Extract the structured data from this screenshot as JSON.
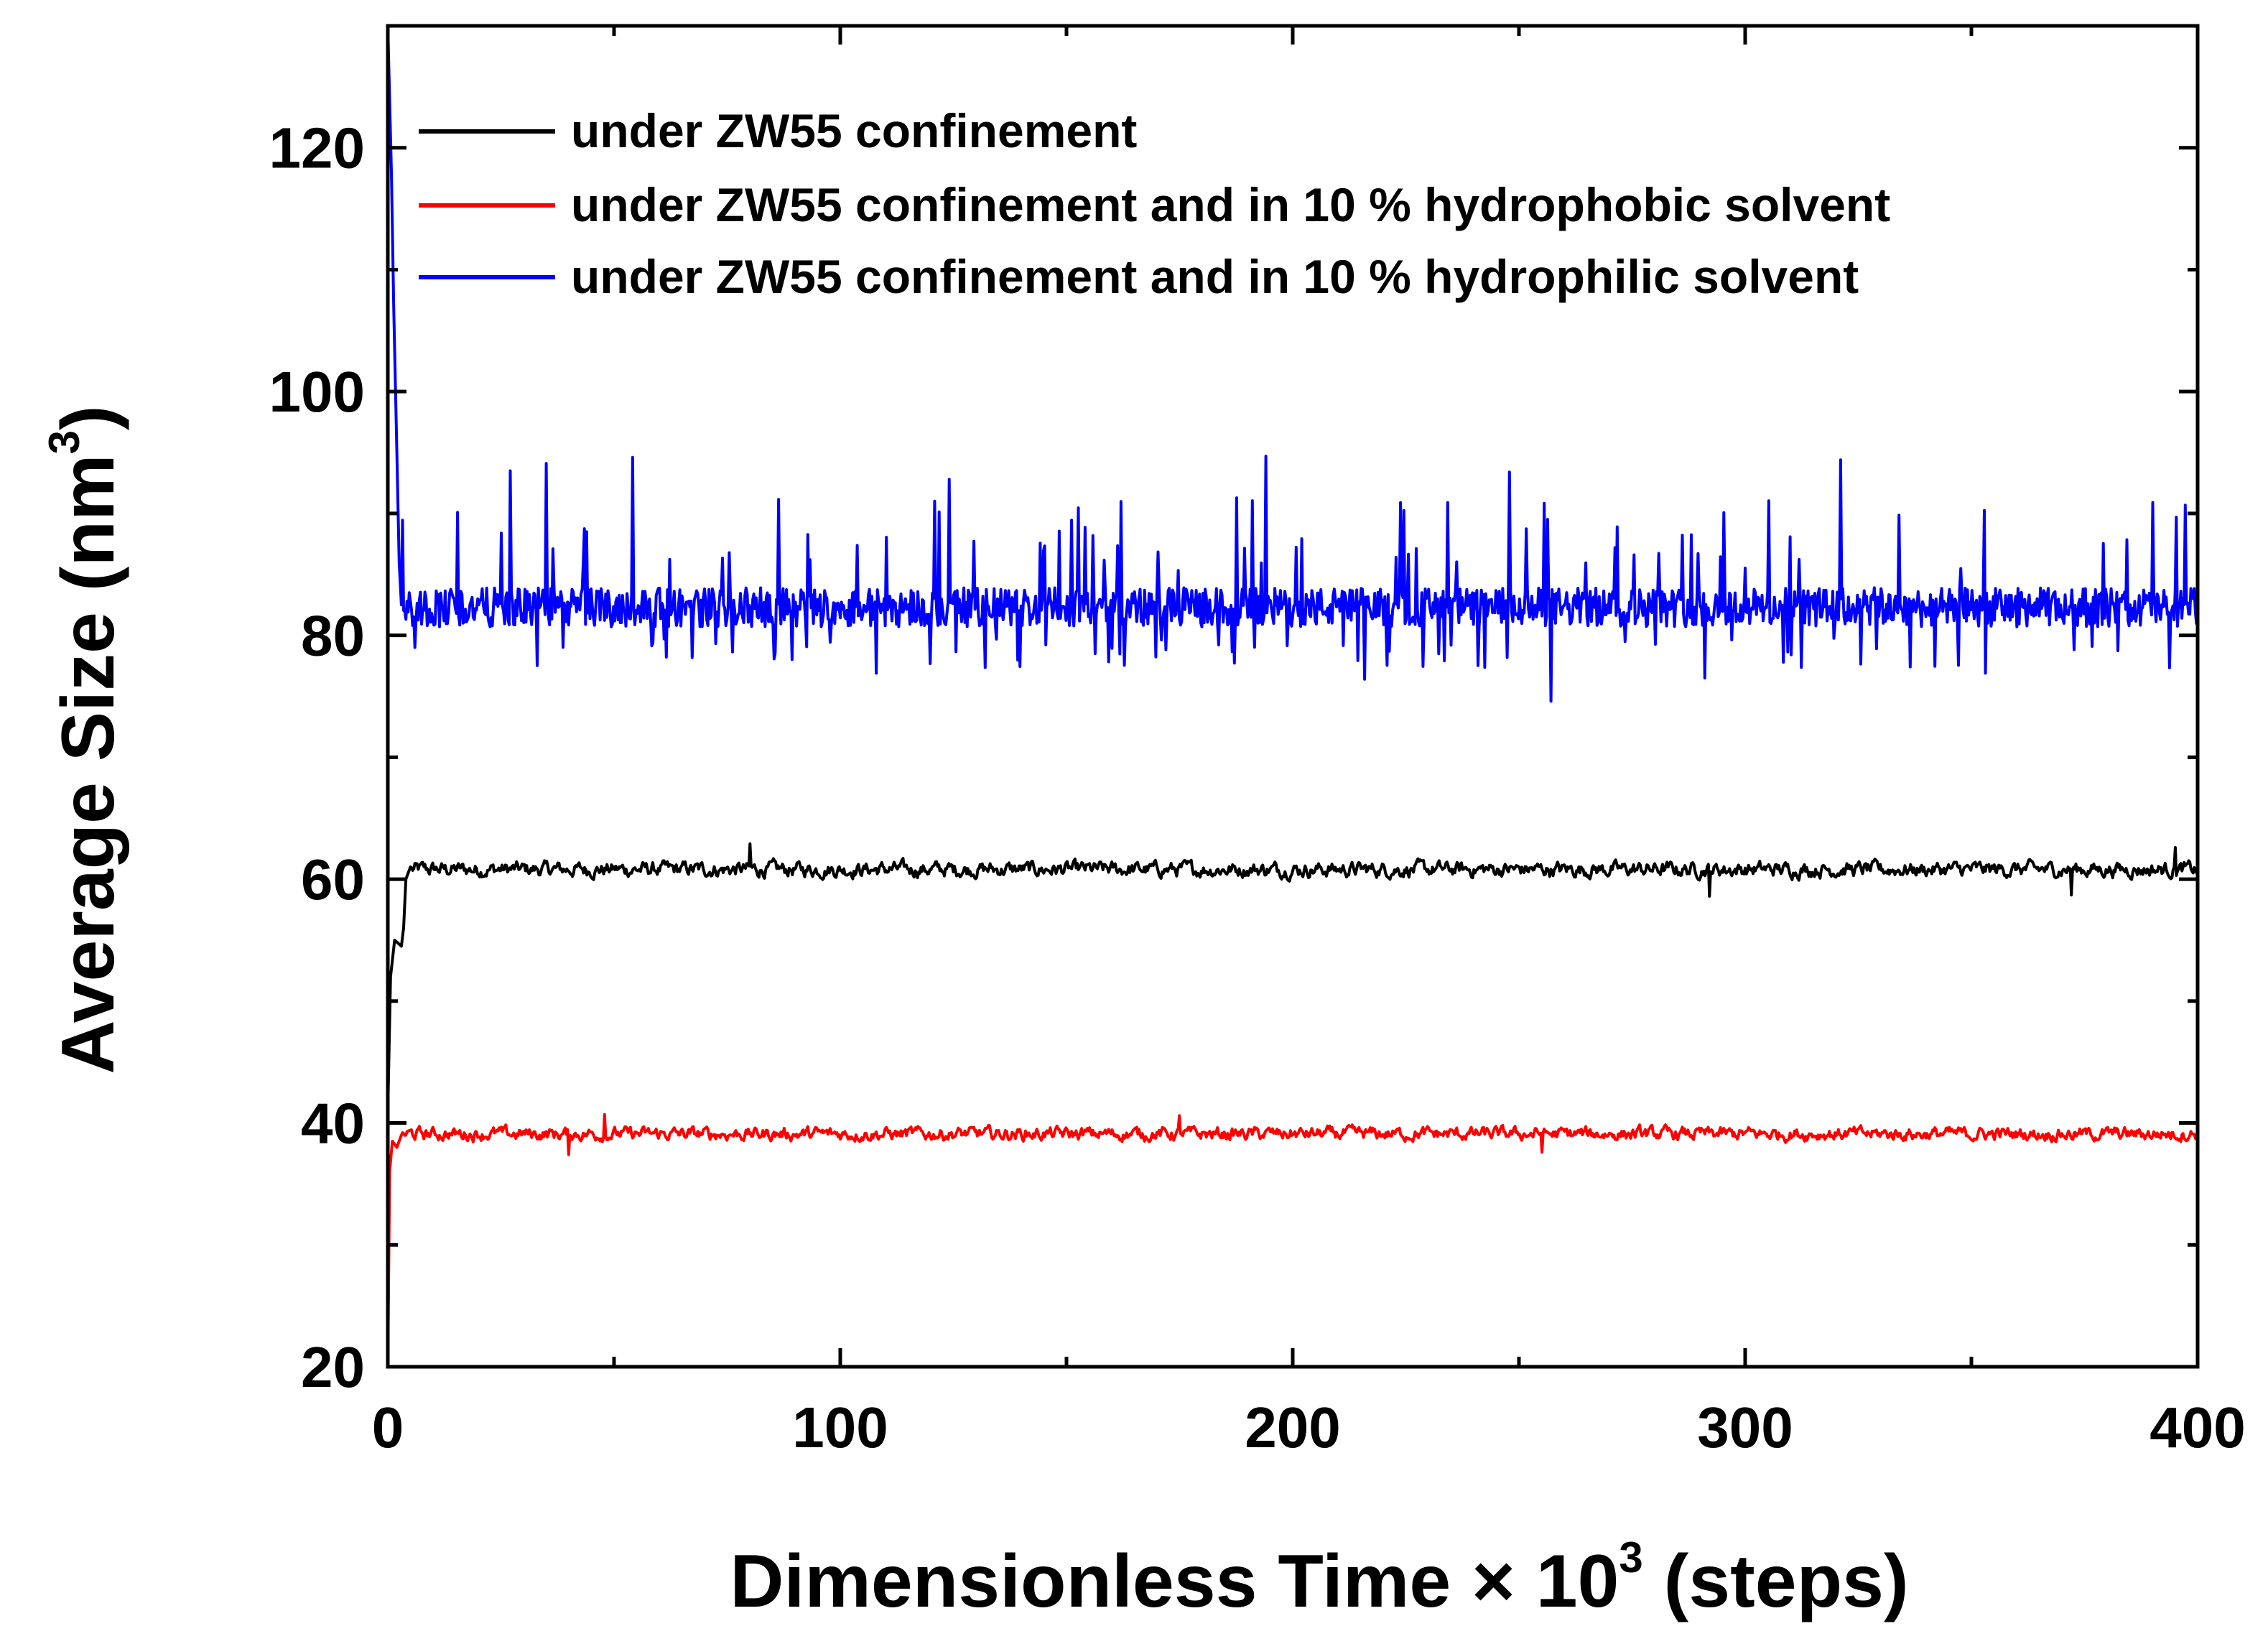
{
  "chart_data": {
    "type": "line",
    "title": "",
    "xlabel": "Dimensionless Time × 10",
    "xlabel_superscript": "3",
    "xlabel_suffix": " (steps)",
    "ylabel": "Average Size (nm",
    "ylabel_superscript": "3",
    "ylabel_suffix": ")",
    "xlim": [
      0,
      400
    ],
    "ylim": [
      20,
      130
    ],
    "x_ticks": [
      0,
      100,
      200,
      300,
      400
    ],
    "x_tick_labels": [
      "0",
      "100",
      "200",
      "300",
      "400"
    ],
    "y_ticks": [
      20,
      40,
      60,
      80,
      100,
      120
    ],
    "y_tick_labels": [
      "20",
      "40",
      "60",
      "80",
      "100",
      "120"
    ],
    "grid": false,
    "legend_position": "top-left",
    "series": [
      {
        "name": "under ZW55 confinement",
        "color": "#000000",
        "initial": [
          [
            0,
            41
          ],
          [
            0.6,
            52
          ],
          [
            1.5,
            55
          ],
          [
            3,
            54.5
          ],
          [
            3.5,
            56
          ],
          [
            4,
            60
          ],
          [
            5,
            61
          ]
        ],
        "mean": 60.8,
        "fluctuation": 0.8,
        "spike_events": [
          [
            80,
            62.9
          ],
          [
            292,
            58.6
          ],
          [
            372,
            58.7
          ],
          [
            395,
            62.6
          ]
        ],
        "x_end": 400
      },
      {
        "name": "under ZW55 confinement and in 10 % hydrophobic solvent",
        "color": "#ff0000",
        "initial": [
          [
            0,
            20
          ],
          [
            0.4,
            36
          ],
          [
            1,
            38.5
          ],
          [
            2,
            38
          ],
          [
            3,
            39
          ]
        ],
        "mean": 39.1,
        "fluctuation": 0.7,
        "spike_events": [
          [
            40,
            37.4
          ],
          [
            48,
            40.7
          ],
          [
            175,
            40.6
          ],
          [
            255,
            37.6
          ]
        ],
        "x_end": 400
      },
      {
        "name": "under ZW55 confinement and in 10 % hydrophilic solvent",
        "color": "#0000ff",
        "initial": [
          [
            0,
            130
          ],
          [
            0.8,
            118
          ],
          [
            1.3,
            107
          ],
          [
            2,
            95
          ],
          [
            2.5,
            86
          ],
          [
            3,
            82.5
          ]
        ],
        "mean": 82.3,
        "fluctuation": 1.6,
        "spike_events": [
          [
            27,
            93.5
          ],
          [
            35,
            94.1
          ],
          [
            54,
            94.6
          ],
          [
            124,
            92.8
          ],
          [
            194,
            94.7
          ],
          [
            248,
            93.4
          ],
          [
            257,
            74.6
          ],
          [
            321,
            94.4
          ],
          [
            390,
            90.9
          ],
          [
            6,
            79.0
          ],
          [
            108,
            76.9
          ],
          [
            216,
            76.4
          ],
          [
            291,
            76.5
          ],
          [
            353,
            76.9
          ]
        ],
        "x_end": 400
      }
    ]
  }
}
